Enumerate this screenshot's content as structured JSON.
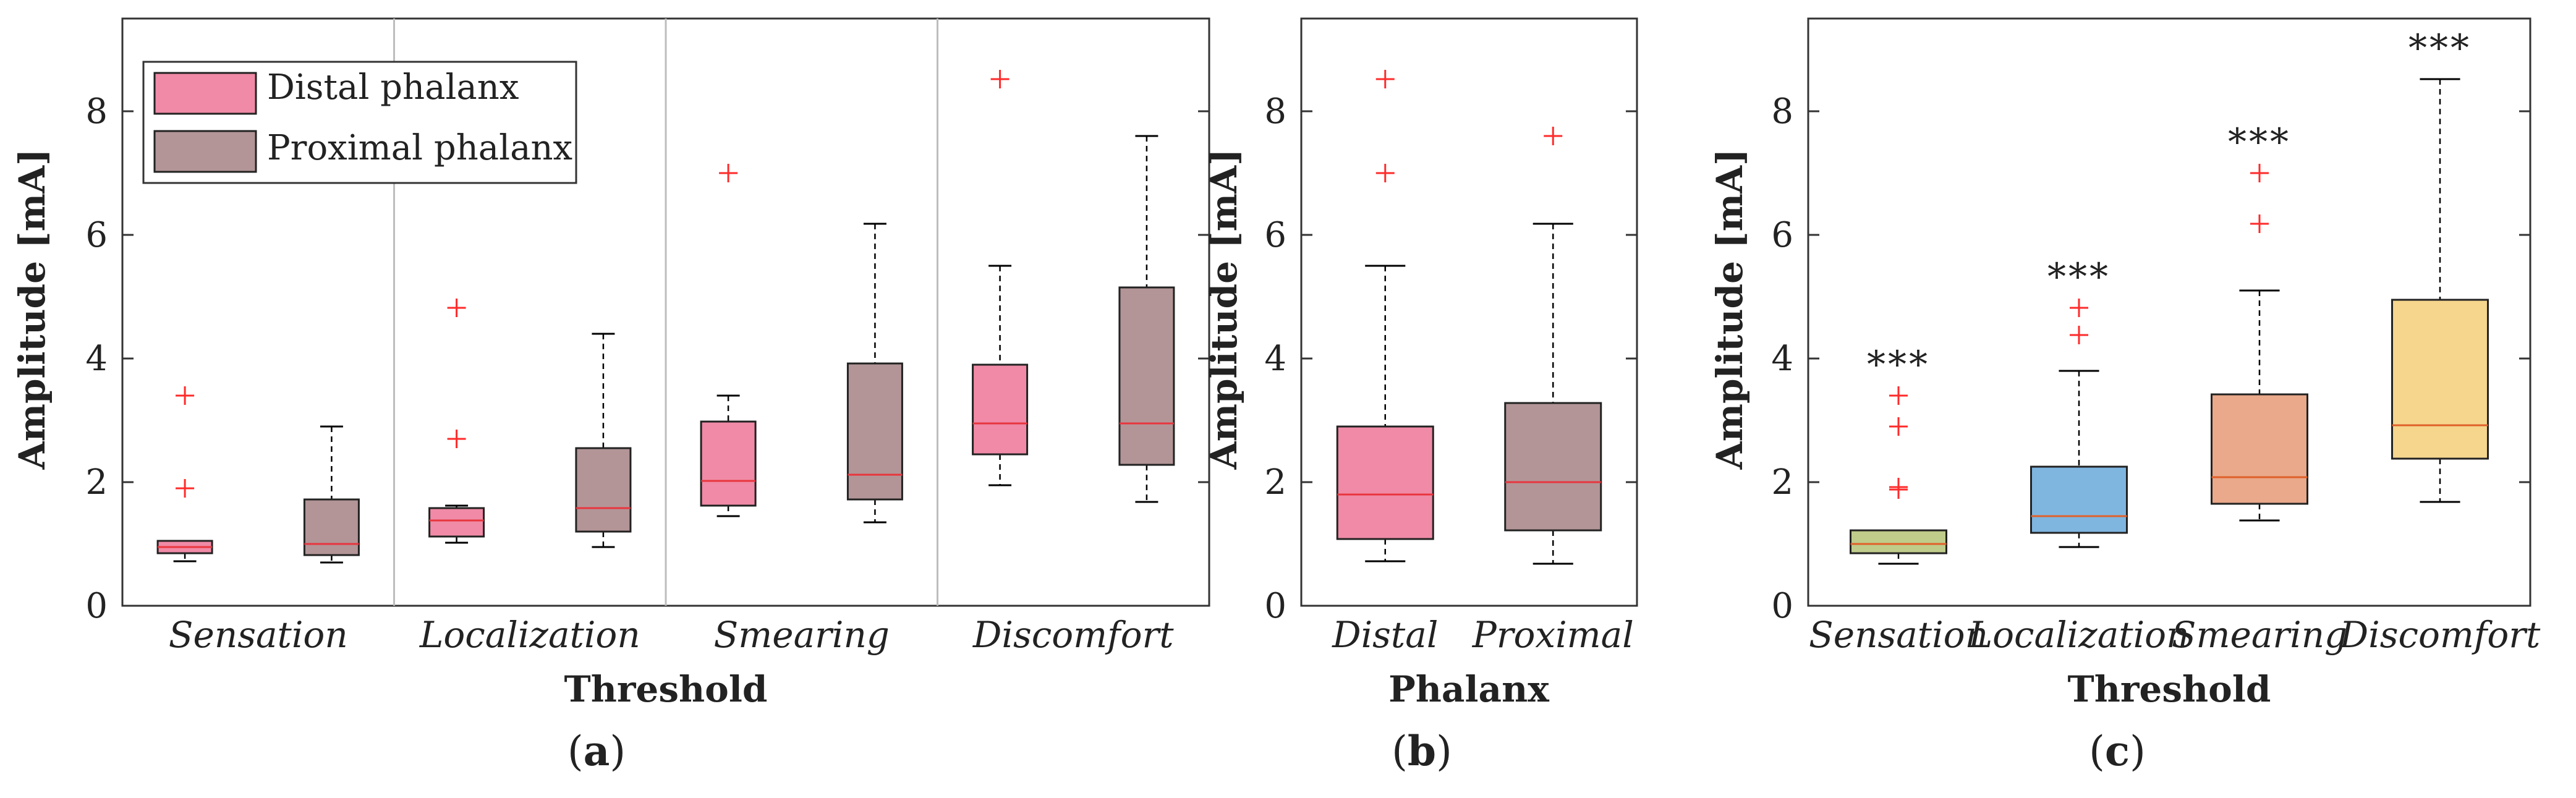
{
  "chart_data": [
    {
      "panel": "a",
      "type": "box",
      "ylabel": "Amplitude [mA]",
      "xlabel": "Threshold",
      "ylim": [
        0,
        9.5
      ],
      "yticks": [
        0,
        2,
        4,
        6,
        8
      ],
      "categories": [
        "Sensation",
        "Localization",
        "Smearing",
        "Discomfort"
      ],
      "legend": {
        "position": "top-left",
        "entries": [
          "Distal phalanx",
          "Proximal phalanx"
        ]
      },
      "series": [
        {
          "name": "Distal phalanx",
          "color": "#f08aa6",
          "median_color": "#e8353e",
          "boxes": [
            {
              "min": 0.72,
              "q1": 0.85,
              "median": 0.95,
              "q3": 1.05,
              "max": 1.05,
              "outliers": [
                1.9,
                3.4
              ]
            },
            {
              "min": 1.02,
              "q1": 1.12,
              "median": 1.38,
              "q3": 1.58,
              "max": 1.62,
              "outliers": [
                2.7,
                4.82
              ]
            },
            {
              "min": 1.45,
              "q1": 1.62,
              "median": 2.02,
              "q3": 2.98,
              "max": 3.4,
              "outliers": [
                7.0
              ]
            },
            {
              "min": 1.95,
              "q1": 2.45,
              "median": 2.95,
              "q3": 3.9,
              "max": 5.5,
              "outliers": [
                8.52
              ]
            }
          ]
        },
        {
          "name": "Proximal phalanx",
          "color": "#b39597",
          "median_color": "#e8353e",
          "boxes": [
            {
              "min": 0.7,
              "q1": 0.82,
              "median": 1.0,
              "q3": 1.72,
              "max": 2.9,
              "outliers": []
            },
            {
              "min": 0.95,
              "q1": 1.2,
              "median": 1.58,
              "q3": 2.55,
              "max": 4.4,
              "outliers": []
            },
            {
              "min": 1.35,
              "q1": 1.72,
              "median": 2.12,
              "q3": 3.92,
              "max": 6.18,
              "outliers": []
            },
            {
              "min": 1.68,
              "q1": 2.28,
              "median": 2.95,
              "q3": 5.15,
              "max": 7.6,
              "outliers": []
            }
          ]
        }
      ]
    },
    {
      "panel": "b",
      "type": "box",
      "ylabel": "Amplitude [mA]",
      "xlabel": "Phalanx",
      "ylim": [
        0,
        9.5
      ],
      "yticks": [
        0,
        2,
        4,
        6,
        8
      ],
      "categories": [
        "Distal",
        "Proximal"
      ],
      "boxes": [
        {
          "category": "Distal",
          "color": "#f08aa6",
          "median_color": "#e8353e",
          "min": 0.72,
          "q1": 1.08,
          "median": 1.8,
          "q3": 2.9,
          "max": 5.5,
          "outliers": [
            7.0,
            8.52
          ]
        },
        {
          "category": "Proximal",
          "color": "#b39597",
          "median_color": "#e8353e",
          "min": 0.68,
          "q1": 1.22,
          "median": 2.0,
          "q3": 3.28,
          "max": 6.18,
          "outliers": [
            7.6
          ]
        }
      ]
    },
    {
      "panel": "c",
      "type": "box",
      "ylabel": "Amplitude [mA]",
      "xlabel": "Threshold",
      "ylim": [
        0,
        9.5
      ],
      "yticks": [
        0,
        2,
        4,
        6,
        8
      ],
      "categories": [
        "Sensation",
        "Localization",
        "Smearing",
        "Discomfort"
      ],
      "boxes": [
        {
          "category": "Sensation",
          "color": "#bfcc8a",
          "median_color": "#e0602a",
          "min": 0.68,
          "q1": 0.85,
          "median": 1.0,
          "q3": 1.22,
          "max": 1.22,
          "outliers": [
            1.88,
            1.92,
            2.9,
            3.4
          ],
          "annotation": "***"
        },
        {
          "category": "Localization",
          "color": "#7fb6e0",
          "median_color": "#e0602a",
          "min": 0.95,
          "q1": 1.18,
          "median": 1.45,
          "q3": 2.25,
          "max": 3.8,
          "outliers": [
            4.38,
            4.82
          ],
          "annotation": "***"
        },
        {
          "category": "Smearing",
          "color": "#e9a98a",
          "median_color": "#e0602a",
          "min": 1.38,
          "q1": 1.65,
          "median": 2.08,
          "q3": 3.42,
          "max": 5.1,
          "outliers": [
            6.18,
            7.0
          ],
          "annotation": "***"
        },
        {
          "category": "Discomfort",
          "color": "#f5d68c",
          "median_color": "#e0602a",
          "min": 1.68,
          "q1": 2.38,
          "median": 2.92,
          "q3": 4.95,
          "max": 8.52,
          "outliers": [],
          "annotation": "***"
        }
      ]
    }
  ],
  "panel_labels": [
    "a",
    "b",
    "c"
  ],
  "colors": {
    "outlier": "#ff2a2a",
    "axis": "#333333",
    "separator": "#bdbdbd"
  }
}
